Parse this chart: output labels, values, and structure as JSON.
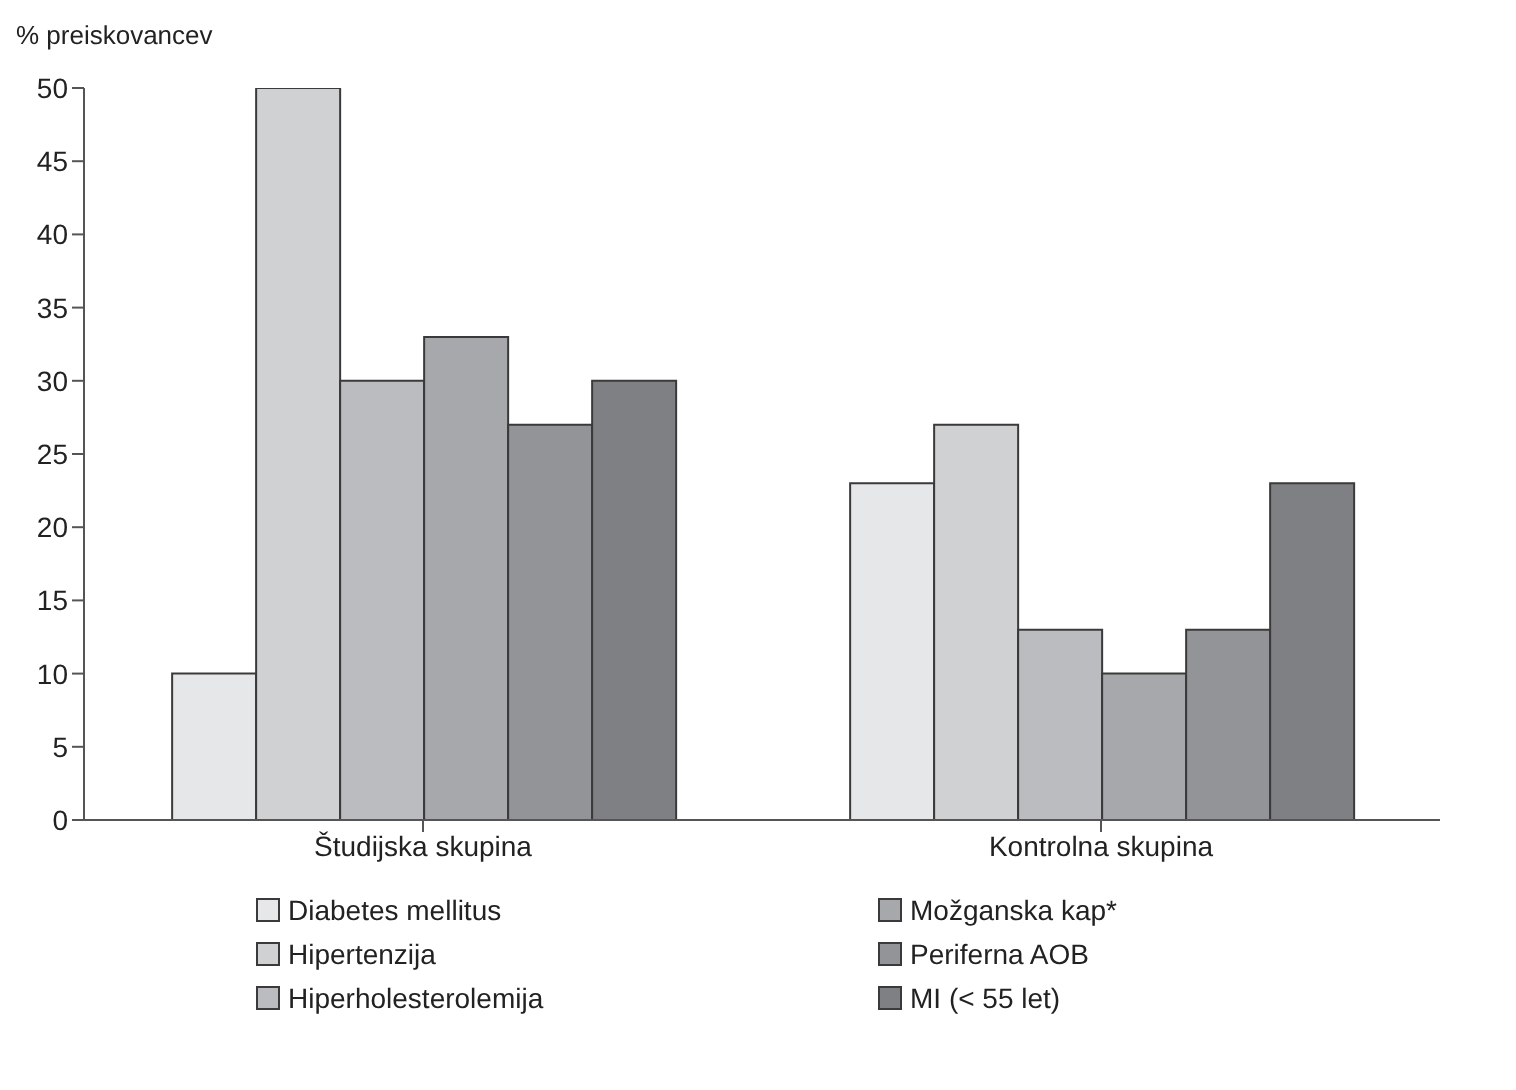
{
  "chart_data": {
    "type": "bar",
    "ylabel": "% preiskovancev",
    "categories": [
      "Študijska skupina",
      "Kontrolna skupina"
    ],
    "series": [
      {
        "name": "Diabetes mellitus",
        "color": "#e6e7e9",
        "values": [
          10,
          23
        ]
      },
      {
        "name": "Hipertenzija",
        "color": "#d0d1d3",
        "values": [
          50,
          27
        ]
      },
      {
        "name": "Hiperholesterolemija",
        "color": "#bbbcbf",
        "values": [
          30,
          13
        ]
      },
      {
        "name": "Možganska kap*",
        "color": "#a7a8ab",
        "values": [
          33,
          10
        ]
      },
      {
        "name": "Periferna AOB",
        "color": "#939497",
        "values": [
          27,
          13
        ]
      },
      {
        "name": "MI (< 55 let)",
        "color": "#7f8083",
        "values": [
          30,
          23
        ]
      }
    ],
    "ylim": [
      0,
      50
    ],
    "yticks": [
      0,
      5,
      10,
      15,
      20,
      25,
      30,
      35,
      40,
      45,
      50
    ],
    "legend": "bottom"
  }
}
